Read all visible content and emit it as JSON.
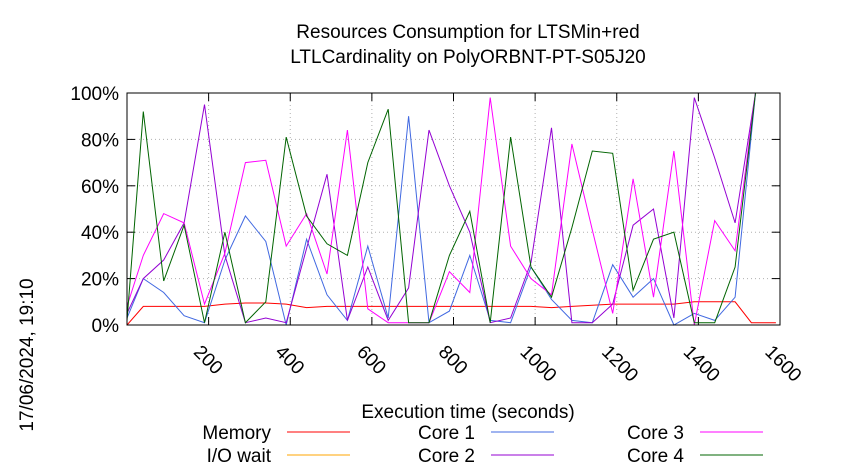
{
  "chart_data": {
    "type": "line",
    "title": "Resources Consumption for LTSMin+red",
    "subtitle": "LTLCardinality on PolyORBNT-PT-S05J20",
    "xlabel": "Execution time (seconds)",
    "ylabel": "",
    "side_label": "17/06/2024, 19:10",
    "xlim": [
      0,
      1600
    ],
    "ylim": [
      0,
      100
    ],
    "x_ticks": [
      200,
      400,
      600,
      800,
      1000,
      1200,
      1400,
      1600
    ],
    "y_ticks": [
      0,
      20,
      40,
      60,
      80,
      100
    ],
    "y_tick_labels": [
      "0%",
      "20%",
      "40%",
      "60%",
      "80%",
      "100%"
    ],
    "grid": true,
    "legend_position": "bottom",
    "series": [
      {
        "name": "Memory",
        "color": "#ff0000",
        "x": [
          0,
          40,
          90,
          140,
          190,
          240,
          290,
          340,
          390,
          440,
          490,
          540,
          590,
          640,
          690,
          740,
          790,
          840,
          890,
          940,
          990,
          1040,
          1090,
          1140,
          1190,
          1240,
          1290,
          1340,
          1390,
          1440,
          1490,
          1530,
          1590
        ],
        "y": [
          0,
          8,
          8,
          8,
          8,
          9,
          9.5,
          9.5,
          9,
          7.5,
          8,
          8,
          8,
          8,
          8,
          8,
          8,
          8,
          8,
          8,
          8,
          7.5,
          8,
          8.5,
          9,
          9,
          9,
          9,
          10,
          10,
          10,
          1,
          1
        ]
      },
      {
        "name": "I/O wait",
        "color": "#ffa500",
        "x": [
          0,
          1590
        ],
        "y": [
          0,
          0
        ]
      },
      {
        "name": "Core 1",
        "color": "#4169e1",
        "x": [
          0,
          40,
          90,
          140,
          190,
          240,
          290,
          340,
          390,
          440,
          490,
          540,
          590,
          640,
          690,
          740,
          790,
          840,
          890,
          940,
          990,
          1040,
          1090,
          1140,
          1190,
          1240,
          1290,
          1340,
          1390,
          1440,
          1490,
          1540
        ],
        "y": [
          3,
          20,
          14,
          4,
          1,
          28,
          47,
          36,
          0,
          37,
          13,
          2,
          34,
          3,
          90,
          1,
          6,
          30,
          2,
          1,
          25,
          11,
          2,
          1,
          26,
          12,
          20,
          0,
          5,
          2,
          12,
          100
        ]
      },
      {
        "name": "Core 2",
        "color": "#9400d3",
        "x": [
          0,
          40,
          90,
          140,
          190,
          240,
          290,
          340,
          390,
          440,
          490,
          540,
          590,
          640,
          690,
          740,
          790,
          840,
          890,
          940,
          990,
          1040,
          1090,
          1140,
          1190,
          1240,
          1290,
          1340,
          1390,
          1440,
          1490,
          1540
        ],
        "y": [
          5,
          20,
          28,
          44,
          95,
          30,
          1,
          3,
          1,
          33,
          65,
          2,
          25,
          2,
          16,
          84,
          60,
          40,
          1,
          3,
          27,
          85,
          1,
          1,
          9,
          43,
          50,
          3,
          98,
          72,
          44,
          100
        ]
      },
      {
        "name": "Core 3",
        "color": "#ff00ff",
        "x": [
          0,
          40,
          90,
          140,
          190,
          240,
          290,
          340,
          390,
          440,
          490,
          540,
          590,
          640,
          690,
          740,
          790,
          840,
          890,
          940,
          990,
          1040,
          1090,
          1140,
          1190,
          1240,
          1290,
          1340,
          1390,
          1440,
          1490,
          1540
        ],
        "y": [
          8,
          30,
          48,
          44,
          9,
          31,
          70,
          71,
          34,
          48,
          22,
          84,
          7,
          1,
          1,
          1,
          23,
          14,
          98,
          34,
          20,
          13,
          78,
          41,
          5,
          63,
          12,
          75,
          0,
          45,
          32,
          100
        ]
      },
      {
        "name": "Core 4",
        "color": "#006400",
        "x": [
          0,
          40,
          90,
          140,
          190,
          240,
          290,
          340,
          390,
          440,
          490,
          540,
          590,
          640,
          690,
          740,
          790,
          840,
          890,
          940,
          990,
          1040,
          1090,
          1140,
          1190,
          1240,
          1290,
          1340,
          1390,
          1440,
          1490,
          1540
        ],
        "y": [
          2,
          92,
          19,
          43,
          1,
          40,
          1,
          10,
          81,
          47,
          35,
          30,
          70,
          93,
          1,
          1,
          30,
          49,
          1,
          81,
          25,
          12,
          42,
          75,
          74,
          15,
          37,
          40,
          1,
          1,
          25,
          100
        ]
      }
    ]
  }
}
